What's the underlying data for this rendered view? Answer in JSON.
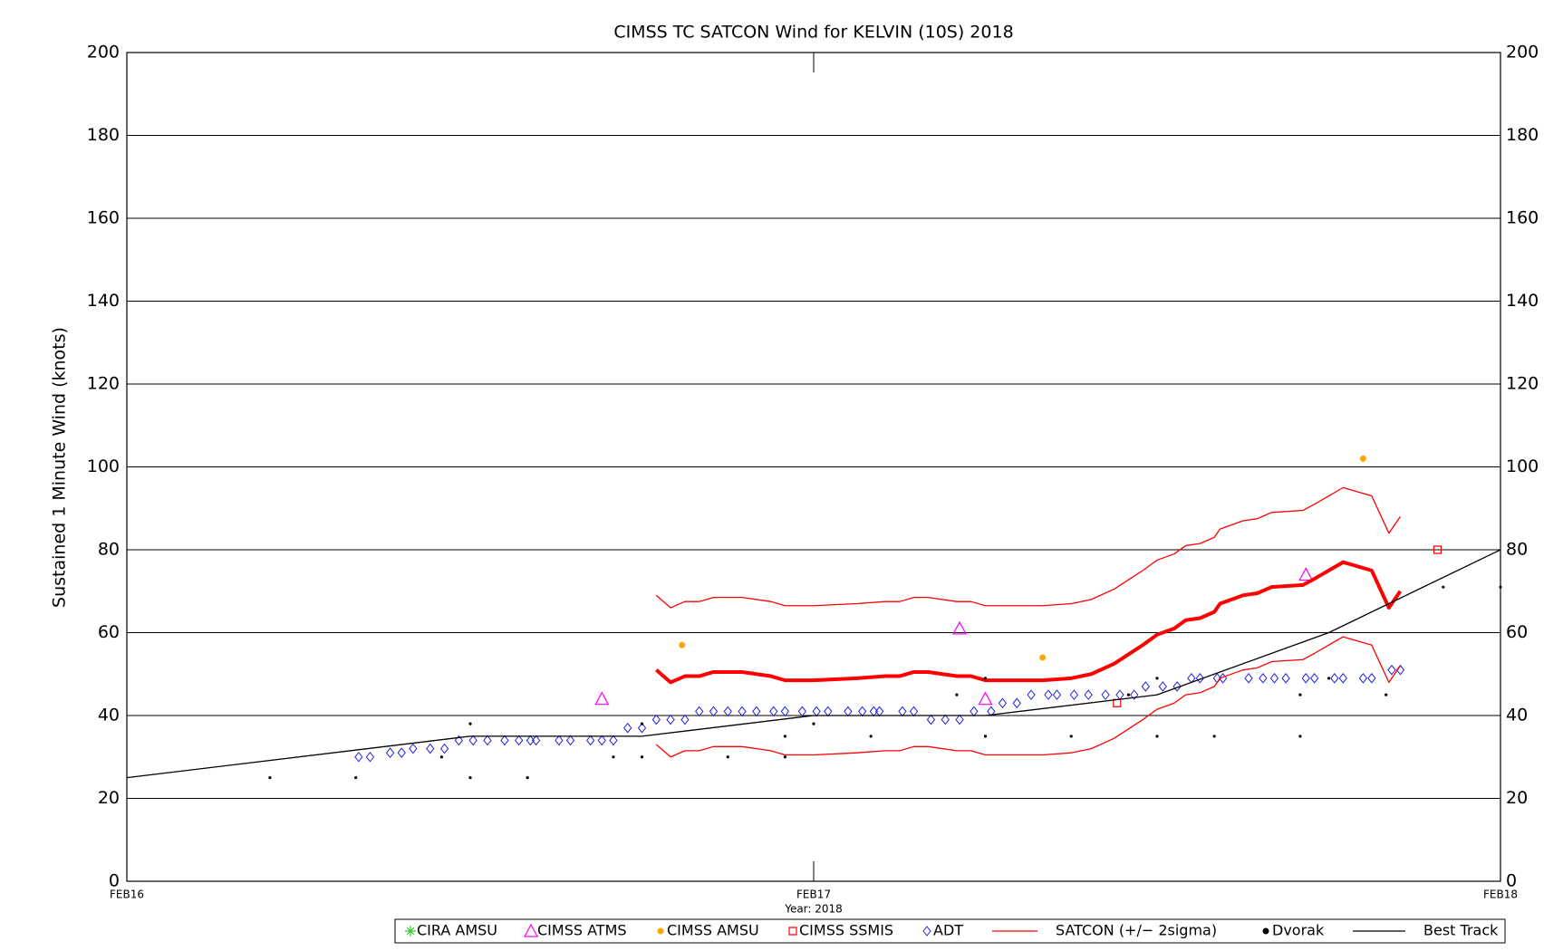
{
  "chart_data": {
    "type": "line",
    "title": "CIMSS TC SATCON Wind for KELVIN (10S) 2018",
    "y_label": "Sustained 1 Minute Wind (knots)",
    "x_label": "Year: 2018",
    "xlim": [
      0,
      48
    ],
    "xticks": [
      {
        "value": 0,
        "label": "FEB16"
      },
      {
        "value": 24,
        "label": "FEB17"
      },
      {
        "value": 48,
        "label": "FEB18"
      }
    ],
    "ylim": [
      0,
      200
    ],
    "yticks": [
      0,
      20,
      40,
      60,
      80,
      100,
      120,
      140,
      160,
      180,
      200
    ],
    "y2lim": [
      0,
      200
    ],
    "y2ticks": [
      0,
      20,
      40,
      60,
      80,
      100,
      120,
      140,
      160,
      180,
      200
    ],
    "grid": true,
    "legend": "bottom",
    "series": [
      {
        "name": "CIRA AMSU",
        "color": "#33cc33",
        "mode": "markers",
        "marker": "asterisk",
        "x": [],
        "values": []
      },
      {
        "name": "CIMSS ATMS",
        "color": "#ff00ff",
        "mode": "markers",
        "marker": "triangle",
        "x": [
          16.6,
          29.1,
          30.0,
          41.2
        ],
        "values": [
          44,
          61,
          44,
          74
        ]
      },
      {
        "name": "CIMSS AMSU",
        "color": "#ffa500",
        "mode": "markers",
        "marker": "circle",
        "x": [
          19.4,
          32.0,
          43.2
        ],
        "values": [
          57,
          54,
          102
        ]
      },
      {
        "name": "CIMSS SSMIS",
        "color": "#ff0000",
        "mode": "markers",
        "marker": "square",
        "x": [
          34.6,
          45.8
        ],
        "values": [
          43,
          80
        ]
      },
      {
        "name": "ADT",
        "color": "#2020e0",
        "mode": "markers",
        "marker": "diamond",
        "x": [
          8.1,
          8.5,
          9.2,
          9.6,
          10.0,
          10.6,
          11.1,
          11.6,
          12.1,
          12.6,
          13.2,
          13.7,
          14.1,
          14.3,
          15.1,
          15.5,
          16.2,
          16.6,
          17.0,
          17.5,
          18.0,
          18.5,
          19.0,
          19.5,
          20.0,
          20.5,
          21.0,
          21.5,
          22.0,
          22.6,
          23.0,
          23.6,
          24.1,
          24.5,
          25.2,
          25.7,
          26.1,
          26.3,
          27.1,
          27.5,
          28.1,
          28.6,
          29.1,
          29.6,
          30.2,
          30.6,
          31.1,
          31.6,
          32.2,
          32.5,
          33.1,
          33.6,
          34.2,
          34.7,
          35.2,
          35.6,
          36.2,
          36.7,
          37.2,
          37.5,
          38.1,
          38.3,
          39.2,
          39.7,
          40.1,
          40.5,
          41.2,
          41.5,
          42.2,
          42.5,
          43.2,
          43.5,
          44.2,
          44.5
        ],
        "values": [
          30,
          30,
          31,
          31,
          32,
          32,
          32,
          34,
          34,
          34,
          34,
          34,
          34,
          34,
          34,
          34,
          34,
          34,
          34,
          37,
          37,
          39,
          39,
          39,
          41,
          41,
          41,
          41,
          41,
          41,
          41,
          41,
          41,
          41,
          41,
          41,
          41,
          41,
          41,
          41,
          39,
          39,
          39,
          41,
          41,
          43,
          43,
          45,
          45,
          45,
          45,
          45,
          45,
          45,
          45,
          47,
          47,
          47,
          49,
          49,
          49,
          49,
          49,
          49,
          49,
          49,
          49,
          49,
          49,
          49,
          49,
          49,
          51,
          51
        ]
      },
      {
        "name": "SATCON (+/− 2sigma)",
        "color": "#ff0000",
        "mode": "line",
        "line_width": 4,
        "x": [
          18.5,
          19.0,
          19.5,
          20.0,
          20.5,
          21.5,
          22.5,
          23.0,
          24.0,
          25.5,
          26.5,
          27.0,
          27.5,
          28.0,
          29.0,
          29.5,
          30.0,
          32.0,
          33.0,
          33.7,
          34.5,
          35.5,
          36.0,
          36.6,
          37.0,
          37.5,
          38.0,
          38.2,
          39.0,
          39.5,
          40.0,
          41.1,
          41.5,
          42.0,
          42.5,
          43.5,
          44.1,
          44.5
        ],
        "values": [
          51,
          48,
          49.5,
          49.5,
          50.5,
          50.5,
          49.5,
          48.5,
          48.5,
          49,
          49.5,
          49.5,
          50.5,
          50.5,
          49.5,
          49.5,
          48.5,
          48.5,
          49,
          50,
          52.5,
          57,
          59.5,
          61,
          63,
          63.5,
          65,
          67,
          69,
          69.5,
          71,
          71.5,
          73,
          75,
          77,
          75,
          66,
          70
        ]
      },
      {
        "color": "#ff0000",
        "mode": "line",
        "line_width": 1.3,
        "x": [
          18.5,
          19.0,
          19.5,
          20.0,
          20.5,
          21.5,
          22.5,
          23.0,
          24.0,
          25.5,
          26.5,
          27.0,
          27.5,
          28.0,
          29.0,
          29.5,
          30.0,
          32.0,
          33.0,
          33.7,
          34.5,
          35.5,
          36.0,
          36.6,
          37.0,
          37.5,
          38.0,
          38.2,
          39.0,
          39.5,
          40.0,
          41.1,
          41.5,
          42.0,
          42.5,
          43.5,
          44.1,
          44.5
        ],
        "values": [
          69,
          66,
          67.5,
          67.5,
          68.5,
          68.5,
          67.5,
          66.5,
          66.5,
          67,
          67.5,
          67.5,
          68.5,
          68.5,
          67.5,
          67.5,
          66.5,
          66.5,
          67,
          68,
          70.5,
          75,
          77.5,
          79,
          81,
          81.5,
          83,
          85,
          87,
          87.5,
          89,
          89.5,
          91,
          93,
          95,
          93,
          84,
          88
        ]
      },
      {
        "color": "#ff0000",
        "mode": "line",
        "line_width": 1.3,
        "x": [
          18.5,
          19.0,
          19.5,
          20.0,
          20.5,
          21.5,
          22.5,
          23.0,
          24.0,
          25.5,
          26.5,
          27.0,
          27.5,
          28.0,
          29.0,
          29.5,
          30.0,
          32.0,
          33.0,
          33.7,
          34.5,
          35.5,
          36.0,
          36.6,
          37.0,
          37.5,
          38.0,
          38.2,
          39.0,
          39.5,
          40.0,
          41.1,
          41.5,
          42.0,
          42.5,
          43.5,
          44.1,
          44.5
        ],
        "values": [
          33,
          30,
          31.5,
          31.5,
          32.5,
          32.5,
          31.5,
          30.5,
          30.5,
          31,
          31.5,
          31.5,
          32.5,
          32.5,
          31.5,
          31.5,
          30.5,
          30.5,
          31,
          32,
          34.5,
          39,
          41.5,
          43,
          45,
          45.5,
          47,
          49,
          51,
          51.5,
          53,
          53.5,
          55,
          57,
          59,
          57,
          48,
          52
        ]
      },
      {
        "name": "Dvorak",
        "color": "#000000",
        "mode": "markers",
        "marker": "dot",
        "x": [
          5.0,
          8.0,
          11.0,
          12.0,
          12.0,
          14.0,
          17.0,
          18.0,
          18.0,
          21.0,
          23.0,
          23.0,
          24.0,
          26.0,
          29.0,
          30.0,
          30.0,
          33.0,
          35.0,
          36.0,
          36.0,
          38.0,
          41.0,
          41.0,
          42.0,
          44.0,
          46.0,
          48.0
        ],
        "values": [
          25,
          25,
          30,
          38,
          25,
          25,
          30,
          30,
          38,
          30,
          35,
          30,
          38,
          35,
          45,
          35,
          49,
          35,
          45,
          35,
          49,
          35,
          45,
          35,
          49,
          45,
          71,
          71
        ]
      },
      {
        "name": "Best Track",
        "color": "#000000",
        "mode": "line",
        "line_width": 1.3,
        "x": [
          0,
          12,
          18,
          24,
          30,
          36,
          42,
          48
        ],
        "values": [
          25,
          35,
          35,
          40,
          40,
          45,
          60,
          80
        ]
      }
    ]
  }
}
